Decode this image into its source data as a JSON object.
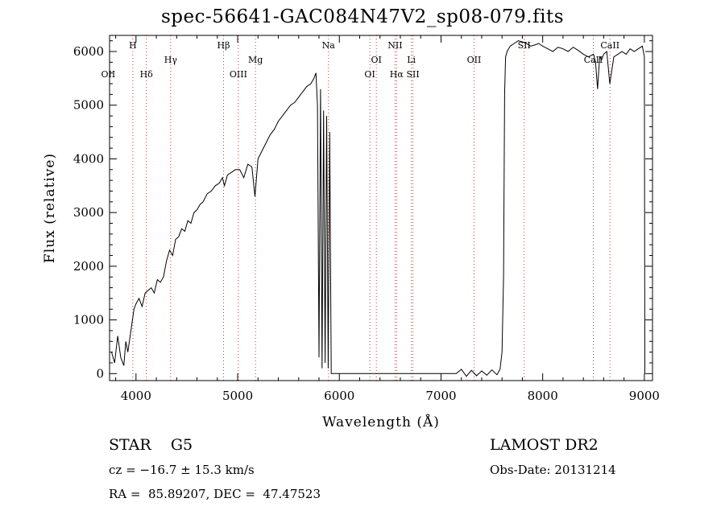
{
  "chart_data": {
    "type": "line",
    "title": "spec-56641-GAC084N47V2_sp08-079.fits",
    "xlabel": "Wavelength (Å)",
    "ylabel": "Flux (relative)",
    "xlim": [
      3740,
      9080
    ],
    "ylim": [
      -130,
      6300
    ],
    "xticks": [
      4000,
      5000,
      6000,
      7000,
      8000,
      9000
    ],
    "yticks": [
      0,
      1000,
      2000,
      3000,
      4000,
      5000,
      6000
    ],
    "grid": false,
    "series": [
      {
        "x": [
          3760,
          3790,
          3820,
          3850,
          3880,
          3900,
          3920,
          3950,
          3980,
          4000,
          4030,
          4060,
          4090,
          4120,
          4150,
          4180,
          4210,
          4240,
          4270,
          4300,
          4330,
          4360,
          4390,
          4420,
          4450,
          4480,
          4510,
          4540,
          4570,
          4600,
          4630,
          4660,
          4700,
          4740,
          4780,
          4820,
          4850,
          4870,
          4900,
          4940,
          4980,
          5020,
          5060,
          5100,
          5140,
          5170,
          5200,
          5240,
          5280,
          5320,
          5360,
          5400,
          5440,
          5480,
          5520,
          5560,
          5600,
          5640,
          5680,
          5720,
          5750,
          5770,
          5785,
          5800,
          5815,
          5830,
          5845,
          5860,
          5875,
          5890,
          5905,
          5920,
          6000,
          6500,
          7000,
          7150,
          7200,
          7250,
          7300,
          7350,
          7400,
          7450,
          7500,
          7550,
          7580,
          7600,
          7615,
          7625,
          7635,
          7650,
          7680,
          7720,
          7760,
          7800,
          7840,
          7880,
          7920,
          7960,
          8000,
          8050,
          8100,
          8150,
          8200,
          8250,
          8300,
          8350,
          8400,
          8450,
          8500,
          8520,
          8540,
          8560,
          8580,
          8600,
          8630,
          8660,
          8700,
          8740,
          8780,
          8820,
          8860,
          8900,
          8940,
          8980,
          9000,
          9005
        ],
        "values": [
          400,
          200,
          700,
          300,
          150,
          600,
          400,
          800,
          1200,
          1300,
          1400,
          1250,
          1500,
          1550,
          1600,
          1500,
          1750,
          1700,
          1800,
          2100,
          2300,
          2200,
          2500,
          2550,
          2700,
          2650,
          2850,
          2800,
          3000,
          3050,
          3150,
          3200,
          3350,
          3400,
          3500,
          3550,
          3650,
          3500,
          3700,
          3750,
          3800,
          3800,
          3650,
          3900,
          3850,
          3300,
          4000,
          4150,
          4300,
          4450,
          4550,
          4700,
          4800,
          4900,
          5000,
          5050,
          5150,
          5250,
          5350,
          5400,
          5500,
          5600,
          5000,
          300,
          5300,
          100,
          4900,
          200,
          4800,
          100,
          4500,
          0,
          0,
          0,
          0,
          0,
          80,
          -50,
          60,
          -40,
          50,
          -30,
          70,
          -20,
          80,
          400,
          1800,
          5200,
          5900,
          6000,
          6100,
          6150,
          6200,
          6180,
          6150,
          6100,
          6120,
          6150,
          6100,
          6050,
          6000,
          6080,
          6050,
          6000,
          6080,
          6020,
          5950,
          5900,
          5950,
          5800,
          5300,
          5900,
          5850,
          5950,
          6000,
          5400,
          5900,
          5950,
          6000,
          5950,
          6050,
          6000,
          6050,
          6100,
          5900,
          0
        ]
      }
    ],
    "lines": [
      {
        "label": "OII",
        "x": 3727,
        "row": 2
      },
      {
        "label": "H",
        "x": 3969,
        "row": 0
      },
      {
        "label": "Hδ",
        "x": 4102,
        "row": 2
      },
      {
        "label": "Hγ",
        "x": 4341,
        "row": 1
      },
      {
        "label": "Hβ",
        "x": 4861,
        "row": 0
      },
      {
        "label": "OIII",
        "x": 5007,
        "row": 2
      },
      {
        "label": "Mg",
        "x": 5175,
        "row": 1
      },
      {
        "label": "Na",
        "x": 5893,
        "row": 0
      },
      {
        "label": "OI",
        "x": 6300,
        "row": 2
      },
      {
        "label": "OI",
        "x": 6364,
        "row": 1
      },
      {
        "label": "NII",
        "x": 6548,
        "row": 0
      },
      {
        "label": "Hα",
        "x": 6563,
        "row": 2
      },
      {
        "label": "Li",
        "x": 6708,
        "row": 1
      },
      {
        "label": "SII",
        "x": 6724,
        "row": 2
      },
      {
        "label": "OII",
        "x": 7325,
        "row": 1
      },
      {
        "label": "SII",
        "x": 7818,
        "row": 0
      },
      {
        "label": "CaII",
        "x": 8498,
        "row": 1
      },
      {
        "label": "CaII",
        "x": 8662,
        "row": 0
      }
    ]
  },
  "info": {
    "class_label": "STAR",
    "subclass": "G5",
    "survey": "LAMOST DR2",
    "cz": "cz = −16.7 ± 15.3 km/s",
    "obs_date": "Obs-Date: 20131214",
    "coords": "RA =  85.89207, DEC =  47.47523"
  },
  "colors": {
    "line_marker": "#cc3333",
    "spectrum": "#000000"
  }
}
